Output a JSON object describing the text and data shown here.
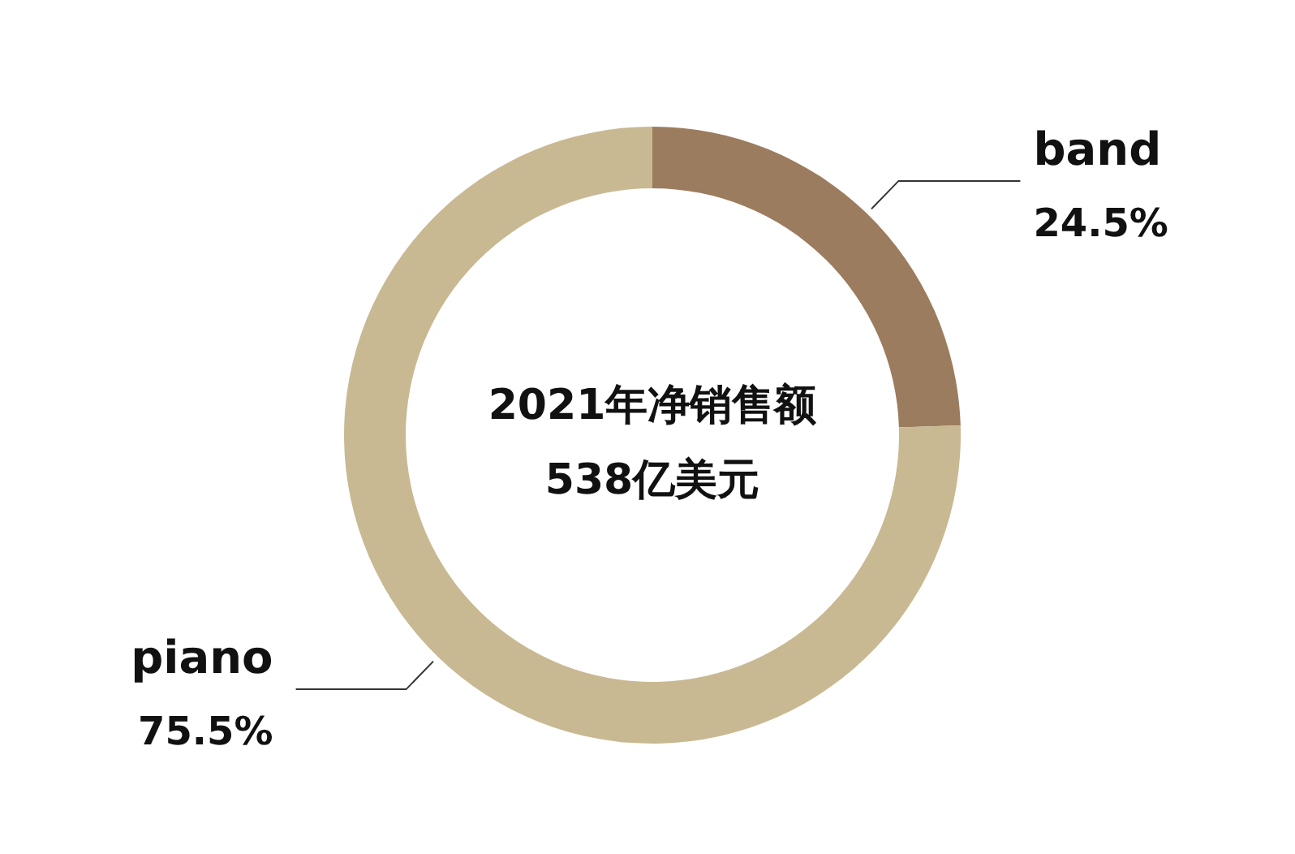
{
  "chart_data": {
    "type": "donut",
    "title": "2021年净销售额",
    "subtitle": "538亿美元",
    "categories": [
      "band",
      "piano"
    ],
    "values": [
      24.5,
      75.5
    ],
    "value_labels": [
      "24.5%",
      "75.5%"
    ],
    "colors": [
      "#9c7c5e",
      "#c8b993"
    ]
  }
}
